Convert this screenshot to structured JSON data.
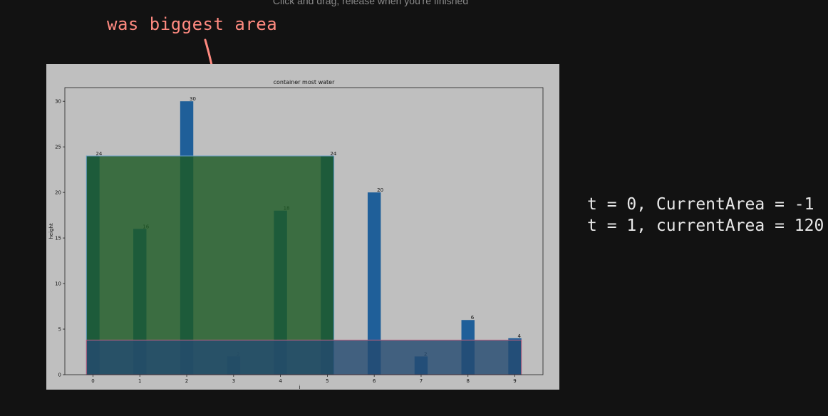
{
  "instruction": "Click and drag, release when you're finished",
  "annotations": {
    "arrow_note": "was biggest area",
    "trace_line1": "t = 0, CurrentArea = -1",
    "trace_line2": "t = 1, currentArea = 120"
  },
  "colors": {
    "bar": "#1f5f99",
    "green_overlay": "#1d5a24",
    "blue_overlay": "#244a70",
    "figure_bg": "#bfbfbf",
    "annotation_red": "#ff8a80"
  },
  "chart_data": {
    "type": "bar",
    "title": "container most water",
    "xlabel": "i",
    "ylabel": "height",
    "categories": [
      "0",
      "1",
      "2",
      "3",
      "4",
      "5",
      "6",
      "7",
      "8",
      "9"
    ],
    "values": [
      24,
      16,
      30,
      2,
      18,
      24,
      20,
      2,
      6,
      4
    ],
    "data_labels": [
      "24",
      "16",
      "30",
      "2",
      "18",
      "24",
      "20",
      "2",
      "6",
      "4"
    ],
    "yticks": [
      "0",
      "5",
      "10",
      "15",
      "20",
      "25",
      "30"
    ],
    "ylim": [
      0,
      31.5
    ],
    "xlim": [
      -0.6,
      9.6
    ],
    "grid": false,
    "highlights": [
      {
        "name": "green-area",
        "x_from": 0,
        "x_to": 5,
        "height": 24
      },
      {
        "name": "blue-area",
        "x_from": 0,
        "x_to": 9,
        "height": 4
      }
    ]
  }
}
